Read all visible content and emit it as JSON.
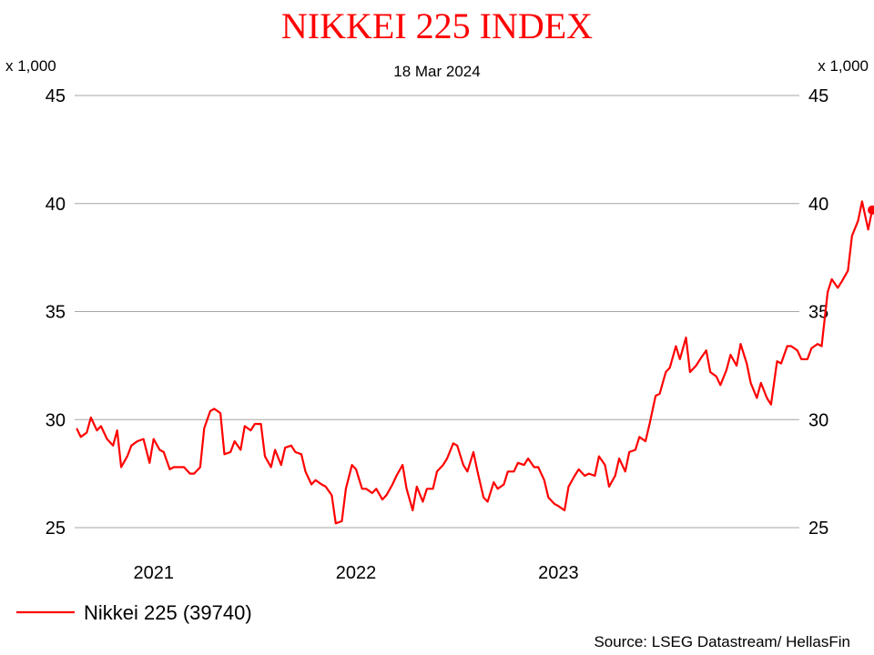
{
  "chart_data": {
    "type": "line",
    "title": "NIKKEI 225 INDEX",
    "subtitle": "18 Mar 2024",
    "left_unit": "x 1,000",
    "right_unit": "x 1,000",
    "ylim": [
      25,
      45
    ],
    "yticks": [
      {
        "value": 25,
        "label": "25"
      },
      {
        "value": 30,
        "label": "30"
      },
      {
        "value": 35,
        "label": "35"
      },
      {
        "value": 40,
        "label": "40"
      },
      {
        "value": 45,
        "label": "45"
      }
    ],
    "xlim": [
      2020.63,
      2024.21
    ],
    "xticks": [
      {
        "value": 2021.02,
        "label": "2021"
      },
      {
        "value": 2022.02,
        "label": "2022"
      },
      {
        "value": 2023.02,
        "label": "2023"
      }
    ],
    "grid": true,
    "legend_position": "bottom-left",
    "series": [
      {
        "name": "Nikkei 225 (39740)",
        "color": "#ff0000",
        "last_point_marker": true,
        "points": [
          [
            2020.64,
            29.6
          ],
          [
            2020.66,
            29.2
          ],
          [
            2020.69,
            29.4
          ],
          [
            2020.71,
            30.1
          ],
          [
            2020.74,
            29.5
          ],
          [
            2020.76,
            29.7
          ],
          [
            2020.79,
            29.1
          ],
          [
            2020.82,
            28.8
          ],
          [
            2020.84,
            29.5
          ],
          [
            2020.86,
            27.8
          ],
          [
            2020.89,
            28.3
          ],
          [
            2020.91,
            28.8
          ],
          [
            2020.94,
            29.0
          ],
          [
            2020.97,
            29.1
          ],
          [
            2021.0,
            28.0
          ],
          [
            2021.02,
            29.1
          ],
          [
            2021.05,
            28.6
          ],
          [
            2021.07,
            28.5
          ],
          [
            2021.1,
            27.7
          ],
          [
            2021.12,
            27.8
          ],
          [
            2021.15,
            27.8
          ],
          [
            2021.17,
            27.8
          ],
          [
            2021.2,
            27.5
          ],
          [
            2021.22,
            27.5
          ],
          [
            2021.25,
            27.8
          ],
          [
            2021.27,
            29.6
          ],
          [
            2021.3,
            30.4
          ],
          [
            2021.32,
            30.5
          ],
          [
            2021.35,
            30.3
          ],
          [
            2021.37,
            28.4
          ],
          [
            2021.4,
            28.5
          ],
          [
            2021.42,
            29.0
          ],
          [
            2021.45,
            28.6
          ],
          [
            2021.47,
            29.7
          ],
          [
            2021.5,
            29.5
          ],
          [
            2021.52,
            29.8
          ],
          [
            2021.55,
            29.8
          ],
          [
            2021.57,
            28.3
          ],
          [
            2021.6,
            27.8
          ],
          [
            2021.62,
            28.6
          ],
          [
            2021.65,
            27.9
          ],
          [
            2021.67,
            28.7
          ],
          [
            2021.7,
            28.8
          ],
          [
            2021.72,
            28.5
          ],
          [
            2021.75,
            28.4
          ],
          [
            2021.77,
            27.6
          ],
          [
            2021.8,
            27.0
          ],
          [
            2021.82,
            27.2
          ],
          [
            2021.85,
            27.0
          ],
          [
            2021.87,
            26.9
          ],
          [
            2021.9,
            26.5
          ],
          [
            2021.92,
            25.2
          ],
          [
            2021.95,
            25.3
          ],
          [
            2021.97,
            26.8
          ],
          [
            2022.0,
            27.9
          ],
          [
            2022.02,
            27.7
          ],
          [
            2022.05,
            26.8
          ],
          [
            2022.07,
            26.8
          ],
          [
            2022.1,
            26.6
          ],
          [
            2022.12,
            26.8
          ],
          [
            2022.15,
            26.3
          ],
          [
            2022.17,
            26.5
          ],
          [
            2022.2,
            27.0
          ],
          [
            2022.22,
            27.4
          ],
          [
            2022.25,
            27.9
          ],
          [
            2022.27,
            26.8
          ],
          [
            2022.3,
            25.8
          ],
          [
            2022.32,
            26.9
          ],
          [
            2022.35,
            26.2
          ],
          [
            2022.37,
            26.8
          ],
          [
            2022.4,
            26.8
          ],
          [
            2022.42,
            27.6
          ],
          [
            2022.45,
            27.9
          ],
          [
            2022.47,
            28.2
          ],
          [
            2022.5,
            28.9
          ],
          [
            2022.52,
            28.8
          ],
          [
            2022.55,
            27.9
          ],
          [
            2022.57,
            27.6
          ],
          [
            2022.6,
            28.5
          ],
          [
            2022.62,
            27.6
          ],
          [
            2022.65,
            26.4
          ],
          [
            2022.67,
            26.2
          ],
          [
            2022.7,
            27.1
          ],
          [
            2022.72,
            26.8
          ],
          [
            2022.75,
            27.0
          ],
          [
            2022.77,
            27.6
          ],
          [
            2022.8,
            27.6
          ],
          [
            2022.82,
            28.0
          ],
          [
            2022.85,
            27.9
          ],
          [
            2022.87,
            28.2
          ],
          [
            2022.9,
            27.8
          ],
          [
            2022.92,
            27.8
          ],
          [
            2022.95,
            27.2
          ],
          [
            2022.97,
            26.4
          ],
          [
            2023.0,
            26.1
          ],
          [
            2023.02,
            26.0
          ],
          [
            2023.05,
            25.8
          ],
          [
            2023.07,
            26.9
          ],
          [
            2023.1,
            27.4
          ],
          [
            2023.12,
            27.7
          ],
          [
            2023.15,
            27.4
          ],
          [
            2023.17,
            27.5
          ],
          [
            2023.2,
            27.4
          ],
          [
            2023.22,
            28.3
          ],
          [
            2023.25,
            27.9
          ],
          [
            2023.27,
            26.9
          ],
          [
            2023.3,
            27.4
          ],
          [
            2023.32,
            28.2
          ],
          [
            2023.35,
            27.6
          ],
          [
            2023.37,
            28.5
          ],
          [
            2023.4,
            28.6
          ],
          [
            2023.42,
            29.2
          ],
          [
            2023.45,
            29.0
          ],
          [
            2023.47,
            29.8
          ],
          [
            2023.5,
            31.1
          ],
          [
            2023.52,
            31.2
          ],
          [
            2023.55,
            32.2
          ],
          [
            2023.57,
            32.4
          ],
          [
            2023.6,
            33.4
          ],
          [
            2023.62,
            32.8
          ],
          [
            2023.65,
            33.8
          ],
          [
            2023.67,
            32.2
          ],
          [
            2023.7,
            32.5
          ],
          [
            2023.72,
            32.8
          ],
          [
            2023.75,
            33.2
          ],
          [
            2023.77,
            32.2
          ],
          [
            2023.8,
            32.0
          ],
          [
            2023.82,
            31.6
          ],
          [
            2023.85,
            32.3
          ],
          [
            2023.87,
            33.0
          ],
          [
            2023.9,
            32.5
          ],
          [
            2023.92,
            33.5
          ],
          [
            2023.95,
            32.6
          ],
          [
            2023.97,
            31.7
          ],
          [
            2024.0,
            31.0
          ],
          [
            2024.02,
            31.7
          ],
          [
            2024.05,
            31.0
          ],
          [
            2024.07,
            30.7
          ],
          [
            2024.1,
            32.7
          ],
          [
            2024.12,
            32.6
          ],
          [
            2024.15,
            33.4
          ],
          [
            2024.17,
            33.4
          ],
          [
            2024.2,
            33.2
          ],
          [
            2024.22,
            32.8
          ],
          [
            2024.25,
            32.8
          ],
          [
            2024.27,
            33.3
          ],
          [
            2024.3,
            33.5
          ],
          [
            2024.32,
            33.4
          ],
          [
            2024.35,
            35.9
          ],
          [
            2024.37,
            36.5
          ],
          [
            2024.4,
            36.1
          ],
          [
            2024.42,
            36.4
          ],
          [
            2024.45,
            36.9
          ],
          [
            2024.47,
            38.5
          ],
          [
            2024.5,
            39.2
          ],
          [
            2024.52,
            40.1
          ],
          [
            2024.55,
            38.8
          ],
          [
            2024.57,
            39.7
          ]
        ]
      }
    ],
    "source": "Source: LSEG Datastream/ HellasFin"
  }
}
